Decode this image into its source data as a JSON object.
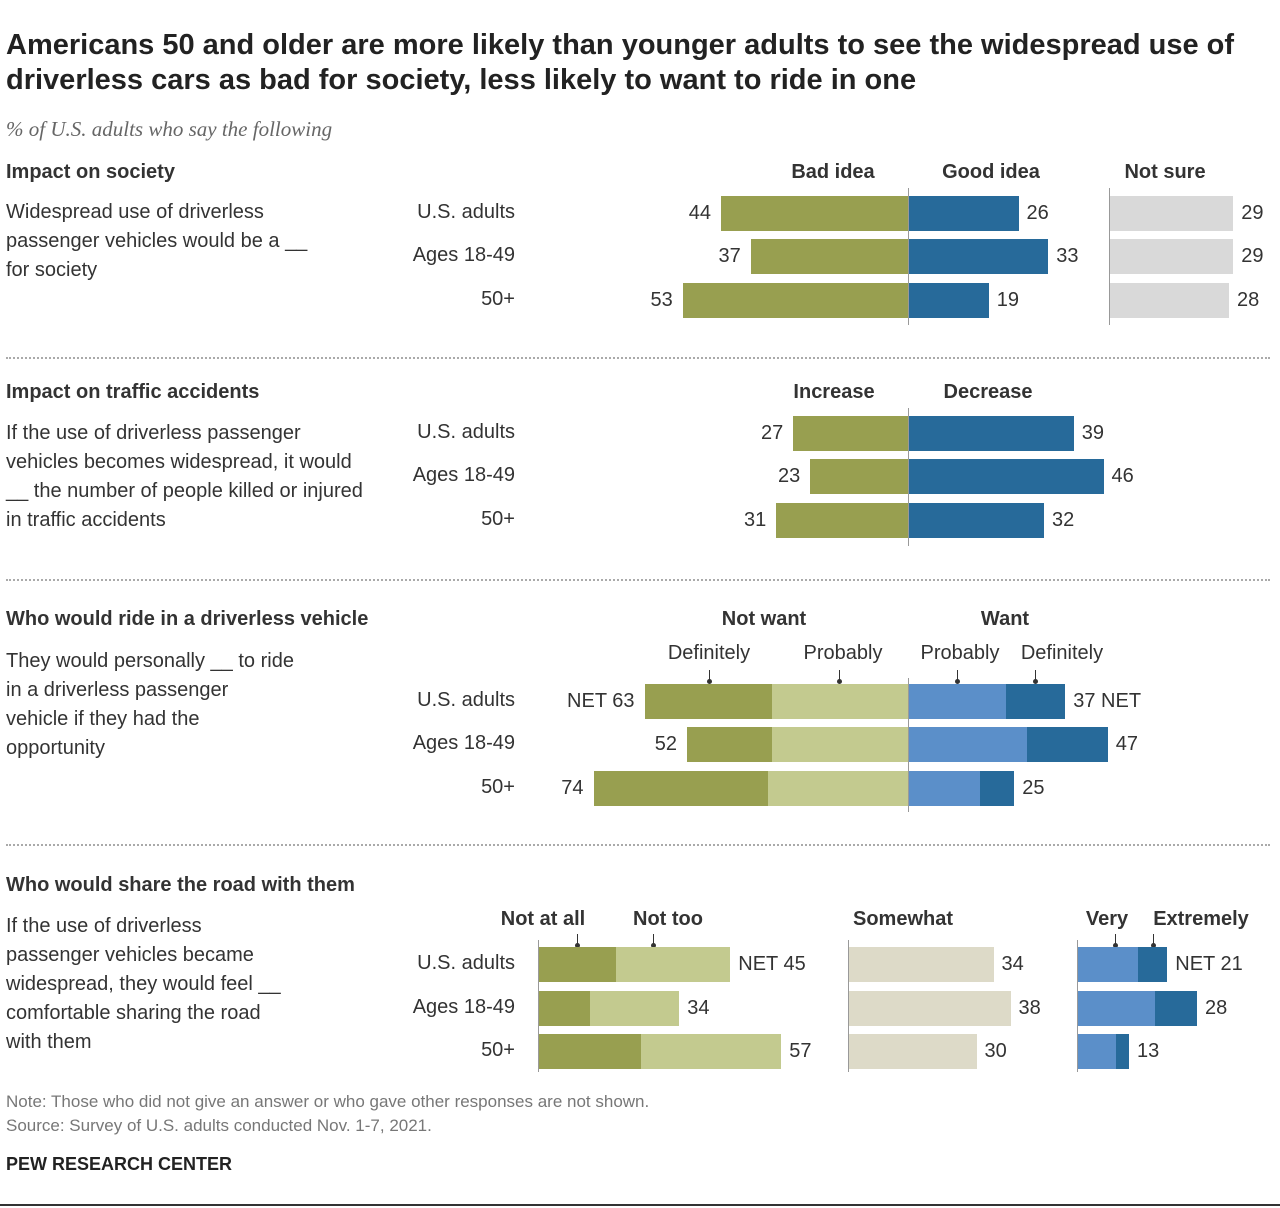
{
  "title": "Americans 50 and older are more likely than younger adults to see the widespread use of driverless cars as bad for society, less likely to want to ride in one",
  "subtitle": "% of U.S. adults who say the following",
  "row_labels": [
    "U.S. adults",
    "Ages 18-49",
    "50+"
  ],
  "colors": {
    "dark_green": "#989F50",
    "light_green": "#C3CA8F",
    "light_blue": "#5B8FC9",
    "dark_blue": "#276A9A",
    "not_sure_gray": "#D9D9D9",
    "somewhat_beige": "#DDDAC8"
  },
  "chart_data": [
    {
      "type": "bar",
      "title": "Impact on society",
      "description": "Widespread use of driverless passenger vehicles would be a __ for society",
      "categories": [
        "U.S. adults",
        "Ages 18-49",
        "50+"
      ],
      "series": [
        {
          "name": "Bad idea",
          "values": [
            44,
            37,
            53
          ]
        },
        {
          "name": "Good idea",
          "values": [
            26,
            33,
            19
          ]
        },
        {
          "name": "Not sure",
          "values": [
            29,
            29,
            28
          ]
        }
      ]
    },
    {
      "type": "bar",
      "title": "Impact on traffic accidents",
      "description": "If the use of driverless passenger vehicles becomes widespread, it would __ the number of people killed or injured in traffic accidents",
      "categories": [
        "U.S. adults",
        "Ages 18-49",
        "50+"
      ],
      "series": [
        {
          "name": "Increase",
          "values": [
            27,
            23,
            31
          ]
        },
        {
          "name": "Decrease",
          "values": [
            39,
            46,
            32
          ]
        }
      ]
    },
    {
      "type": "bar",
      "title": "Who would ride in a driverless vehicle",
      "description": "They would personally __ to ride in a driverless passenger vehicle if they had the opportunity",
      "categories": [
        "U.S. adults",
        "Ages 18-49",
        "50+"
      ],
      "group_labels": {
        "not_want": "Not want",
        "want": "Want"
      },
      "series": [
        {
          "name": "Definitely",
          "group": "Not want",
          "values": [
            30,
            20,
            41
          ]
        },
        {
          "name": "Probably",
          "group": "Not want",
          "values": [
            32,
            32,
            33
          ]
        },
        {
          "name": "Probably",
          "group": "Want",
          "values": [
            23,
            28,
            17
          ]
        },
        {
          "name": "Definitely",
          "group": "Want",
          "values": [
            14,
            19,
            8
          ]
        }
      ],
      "net_labels": {
        "not_want": [
          "NET 63",
          "52",
          "74"
        ],
        "want": [
          "37  NET",
          "47",
          "25"
        ]
      }
    },
    {
      "type": "bar",
      "title": "Who would share the road with them",
      "description": "If the use of driverless passenger vehicles became widespread, they would feel __ comfortable sharing the road with them",
      "categories": [
        "U.S. adults",
        "Ages 18-49",
        "50+"
      ],
      "series": [
        {
          "name": "Not at all",
          "values": [
            18,
            12,
            24
          ]
        },
        {
          "name": "Not too",
          "values": [
            27,
            21,
            33
          ]
        },
        {
          "name": "Somewhat",
          "values": [
            34,
            38,
            30
          ]
        },
        {
          "name": "Very",
          "values": [
            14,
            18,
            9
          ]
        },
        {
          "name": "Extremely",
          "values": [
            7,
            10,
            3
          ]
        }
      ],
      "net_labels": {
        "not": [
          "NET 45",
          "34",
          "57"
        ],
        "somewhat": [
          "34",
          "38",
          "30"
        ],
        "comfortable": [
          "NET 21",
          "28",
          "13"
        ]
      }
    }
  ],
  "note": "Note: Those who did not give an answer or who gave other responses are not shown.",
  "source": "Source: Survey of U.S. adults conducted Nov. 1-7, 2021.",
  "brand": "PEW RESEARCH CENTER"
}
